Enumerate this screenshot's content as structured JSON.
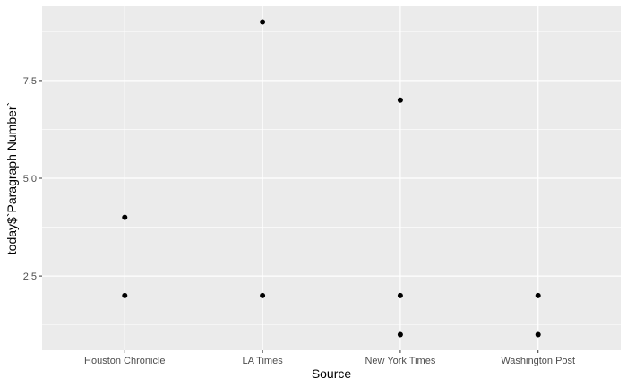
{
  "chart_data": {
    "type": "scatter",
    "title": "",
    "xlabel": "Source",
    "ylabel": "today$`Paragraph Number`",
    "categories": [
      "Houston Chronicle",
      "LA Times",
      "New York Times",
      "Washington Post"
    ],
    "y_ticks": [
      2.5,
      5.0,
      7.5
    ],
    "y_tick_labels": [
      "2.5",
      "5.0",
      "7.5"
    ],
    "ylim": [
      0.6,
      9.4
    ],
    "grid": true,
    "legend": "none",
    "points": [
      {
        "x": "Houston Chronicle",
        "y": 2
      },
      {
        "x": "Houston Chronicle",
        "y": 4
      },
      {
        "x": "LA Times",
        "y": 2
      },
      {
        "x": "LA Times",
        "y": 9
      },
      {
        "x": "New York Times",
        "y": 1
      },
      {
        "x": "New York Times",
        "y": 2
      },
      {
        "x": "New York Times",
        "y": 7
      },
      {
        "x": "Washington Post",
        "y": 1
      },
      {
        "x": "Washington Post",
        "y": 2
      }
    ],
    "colors": {
      "panel": "#ebebeb",
      "grid_major": "#ffffff",
      "point": "#000000",
      "tick": "#333333"
    }
  }
}
